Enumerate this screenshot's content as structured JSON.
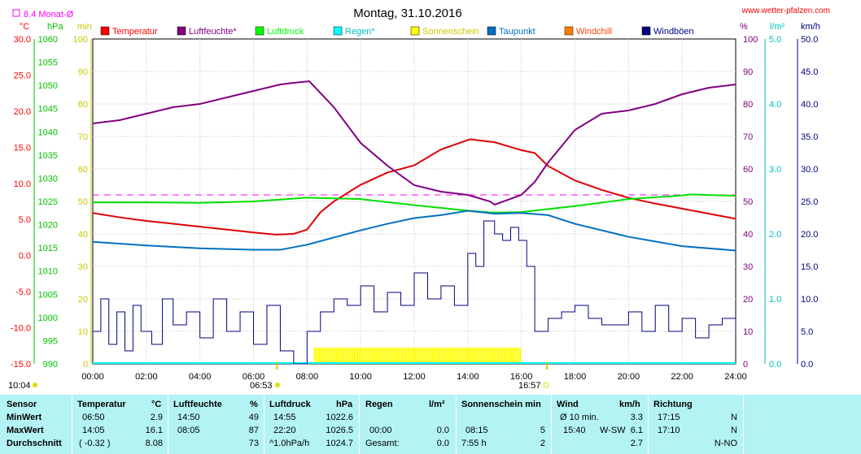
{
  "chart_data": {
    "type": "line",
    "title": "Montag, 31.10.2016",
    "source_link": "www.wetter-pfalzen.com",
    "monthly_avg_label": "8.4 Monat-Ø",
    "axes": {
      "temp": {
        "unit": "°C",
        "ticks": [
          "30.0",
          "25.0",
          "20.0",
          "15.0",
          "10.0",
          "5.0",
          "0.0",
          "-5.0",
          "-10.0",
          "-15.0"
        ],
        "range": [
          -15,
          30
        ],
        "color": "#ff0000"
      },
      "pressure": {
        "unit": "hPa",
        "ticks": [
          "1060",
          "1055",
          "1050",
          "1045",
          "1040",
          "1035",
          "1030",
          "1025",
          "1020",
          "1015",
          "1010",
          "1005",
          "1000",
          "995",
          "990"
        ],
        "range": [
          990,
          1060
        ],
        "color": "#00c000"
      },
      "sunshine_min": {
        "unit": "min",
        "ticks": [
          "100",
          "90",
          "80",
          "70",
          "60",
          "50",
          "40",
          "30",
          "20",
          "10",
          "0"
        ],
        "range": [
          0,
          100
        ],
        "color": "#c8c800"
      },
      "humidity": {
        "unit": "%",
        "ticks": [
          "100",
          "90",
          "80",
          "70",
          "60",
          "50",
          "40",
          "30",
          "20",
          "10",
          "0"
        ],
        "range": [
          0,
          100
        ],
        "color": "#800080"
      },
      "rain": {
        "unit": "l/m²",
        "ticks": [
          "5.0",
          "4.0",
          "3.0",
          "2.0",
          "1.0",
          "0.0"
        ],
        "range": [
          0,
          5
        ],
        "color": "#00c0c0"
      },
      "wind": {
        "unit": "km/h",
        "ticks": [
          "50.0",
          "45.0",
          "40.0",
          "35.0",
          "30.0",
          "25.0",
          "20.0",
          "15.0",
          "10.0",
          "5.0",
          "0.0"
        ],
        "range": [
          0,
          50
        ],
        "color": "#000080"
      }
    },
    "x_ticks": [
      "00:00",
      "02:00",
      "04:00",
      "06:00",
      "08:00",
      "10:00",
      "12:00",
      "14:00",
      "16:00",
      "18:00",
      "20:00",
      "22:00",
      "24:00"
    ],
    "sunrise": "06:53",
    "sunset": "16:57",
    "sunrise_hour": 6.88,
    "sunset_hour": 16.95,
    "day_length": "10:04",
    "monthly_avg_temp": 8.4,
    "legend": [
      {
        "name": "Temperatur",
        "color": "#ff0000"
      },
      {
        "name": "Luftfeuchte*",
        "color": "#800080"
      },
      {
        "name": "Luftdruck",
        "color": "#00ff00"
      },
      {
        "name": "Regen*",
        "color": "#00ffff"
      },
      {
        "name": "Sonnenschein",
        "color": "#ffff00"
      },
      {
        "name": "Taupunkt",
        "color": "#0070c0"
      },
      {
        "name": "Windchill",
        "color": "#ff8000"
      },
      {
        "name": "Windböen",
        "color": "#000080"
      }
    ],
    "series": [
      {
        "name": "Temperatur",
        "axis": "temp",
        "x": [
          0,
          1,
          2,
          3,
          4,
          5,
          6,
          6.83,
          7.5,
          8,
          8.5,
          9,
          10,
          11,
          12,
          13,
          14,
          14.08,
          15,
          16,
          16.5,
          17,
          18,
          19,
          20,
          21,
          22,
          23,
          24
        ],
        "y": [
          5.9,
          5.3,
          4.8,
          4.4,
          4.0,
          3.6,
          3.2,
          2.9,
          3.0,
          3.6,
          6.0,
          7.5,
          9.8,
          11.5,
          12.5,
          14.7,
          16.0,
          16.1,
          15.7,
          14.6,
          14.2,
          12.4,
          10.4,
          9.1,
          8.0,
          7.2,
          6.5,
          5.8,
          5.1
        ]
      },
      {
        "name": "Luftfeuchte",
        "axis": "humidity",
        "x": [
          0,
          1,
          2,
          3,
          4,
          5,
          6,
          7,
          7.5,
          8.08,
          9,
          10,
          11,
          12,
          13,
          14,
          14.83,
          15,
          16,
          16.5,
          17,
          18,
          19,
          20,
          21,
          22,
          23,
          24
        ],
        "y": [
          74,
          75,
          77,
          79,
          80,
          82,
          84,
          86,
          86.5,
          87,
          79,
          68,
          61,
          55,
          53,
          52,
          50,
          49,
          52,
          56,
          62,
          72,
          77,
          78,
          80,
          83,
          85,
          86
        ]
      },
      {
        "name": "Luftdruck",
        "axis": "pressure",
        "x": [
          0,
          2,
          4,
          6,
          8,
          10,
          12,
          14,
          14.92,
          16,
          18,
          20,
          22,
          22.33,
          24
        ],
        "y": [
          1024.8,
          1024.8,
          1024.7,
          1025.0,
          1025.8,
          1025.5,
          1024.2,
          1023.0,
          1022.6,
          1022.7,
          1024.0,
          1025.5,
          1026.3,
          1026.5,
          1026.2
        ]
      },
      {
        "name": "Taupunkt",
        "axis": "temp",
        "x": [
          0,
          2,
          4,
          6,
          7,
          8,
          9,
          10,
          11,
          12,
          13,
          14,
          15,
          16,
          17,
          18,
          20,
          22,
          24
        ],
        "y": [
          1.9,
          1.4,
          1.0,
          0.8,
          0.8,
          1.5,
          2.5,
          3.5,
          4.4,
          5.2,
          5.6,
          6.2,
          5.8,
          5.9,
          5.6,
          4.4,
          2.6,
          1.3,
          0.7
        ]
      },
      {
        "name": "Windböen",
        "axis": "wind",
        "x": [
          0,
          0.3,
          0.6,
          0.9,
          1.2,
          1.5,
          1.8,
          2.2,
          2.6,
          3,
          3.5,
          4,
          4.5,
          5,
          5.5,
          6,
          6.5,
          7,
          7.5,
          8,
          8.5,
          9,
          9.5,
          10,
          10.5,
          11,
          11.5,
          12,
          12.5,
          13,
          13.5,
          14,
          14.3,
          14.6,
          15,
          15.3,
          15.6,
          15.9,
          16.2,
          16.5,
          17,
          17.5,
          18,
          18.5,
          19,
          20,
          20.5,
          21,
          21.5,
          22,
          22.5,
          23,
          23.5,
          24
        ],
        "y": [
          5,
          10,
          3,
          8,
          2,
          9,
          5,
          3,
          10,
          6,
          8,
          4,
          10,
          5,
          8,
          3,
          9,
          2,
          0,
          5,
          8,
          10,
          9,
          12,
          8,
          11,
          9,
          14,
          10,
          12,
          9,
          17,
          15,
          22,
          20,
          19,
          21,
          19,
          15,
          5,
          7,
          8,
          9,
          7,
          6,
          8,
          5,
          9,
          5,
          7,
          4,
          6,
          7,
          5
        ]
      },
      {
        "name": "Sonnenschein",
        "axis": "sunshine_min",
        "x": [
          8.25,
          16.0
        ],
        "y": [
          5,
          5
        ]
      }
    ]
  },
  "stats": {
    "headers": [
      {
        "label": "Sensor"
      },
      {
        "label": "Temperatur",
        "unit": "°C"
      },
      {
        "label": "Luftfeuchte",
        "unit": "%"
      },
      {
        "label": "Luftdruck",
        "unit": "hPa"
      },
      {
        "label": "Regen",
        "unit": "l/m²"
      },
      {
        "label": "Sonnenschein min"
      },
      {
        "label": "Wind",
        "unit": "km/h"
      },
      {
        "label": "Richtung"
      }
    ],
    "rows": [
      {
        "label": "MinWert",
        "temp_time": "06:50",
        "temp_val": "2.9",
        "hum_time": "14:50",
        "hum_val": "49",
        "press_time": "14:55",
        "press_val": "1022.6",
        "rain_time": "",
        "rain_val": "",
        "sun_time": "",
        "sun_val": "",
        "wind_time": "Ø 10 min.",
        "wind_dir": "",
        "wind_val": "3.3",
        "dir_time": "17:15",
        "dir_val": "N"
      },
      {
        "label": "MaxWert",
        "temp_time": "14:05",
        "temp_val": "16.1",
        "hum_time": "08:05",
        "hum_val": "87",
        "press_time": "22:20",
        "press_val": "1026.5",
        "rain_time": "00:00",
        "rain_val": "0.0",
        "sun_time": "08:15",
        "sun_val": "5",
        "wind_time": "15:40",
        "wind_dir": "W-SW",
        "wind_val": "6.1",
        "dir_time": "17:10",
        "dir_val": "N"
      },
      {
        "label": "Durchschnitt",
        "temp_time": "( -0.32 )",
        "temp_val": "8.08",
        "hum_time": "",
        "hum_val": "73",
        "press_time": "^1.0hPa/h",
        "press_val": "1024.7",
        "rain_time": "Gesamt:",
        "rain_val": "0.0",
        "sun_time": "7:55 h",
        "sun_val": "2",
        "wind_time": "",
        "wind_dir": "",
        "wind_val": "2.7",
        "dir_time": "",
        "dir_val": "N-NO"
      }
    ]
  }
}
